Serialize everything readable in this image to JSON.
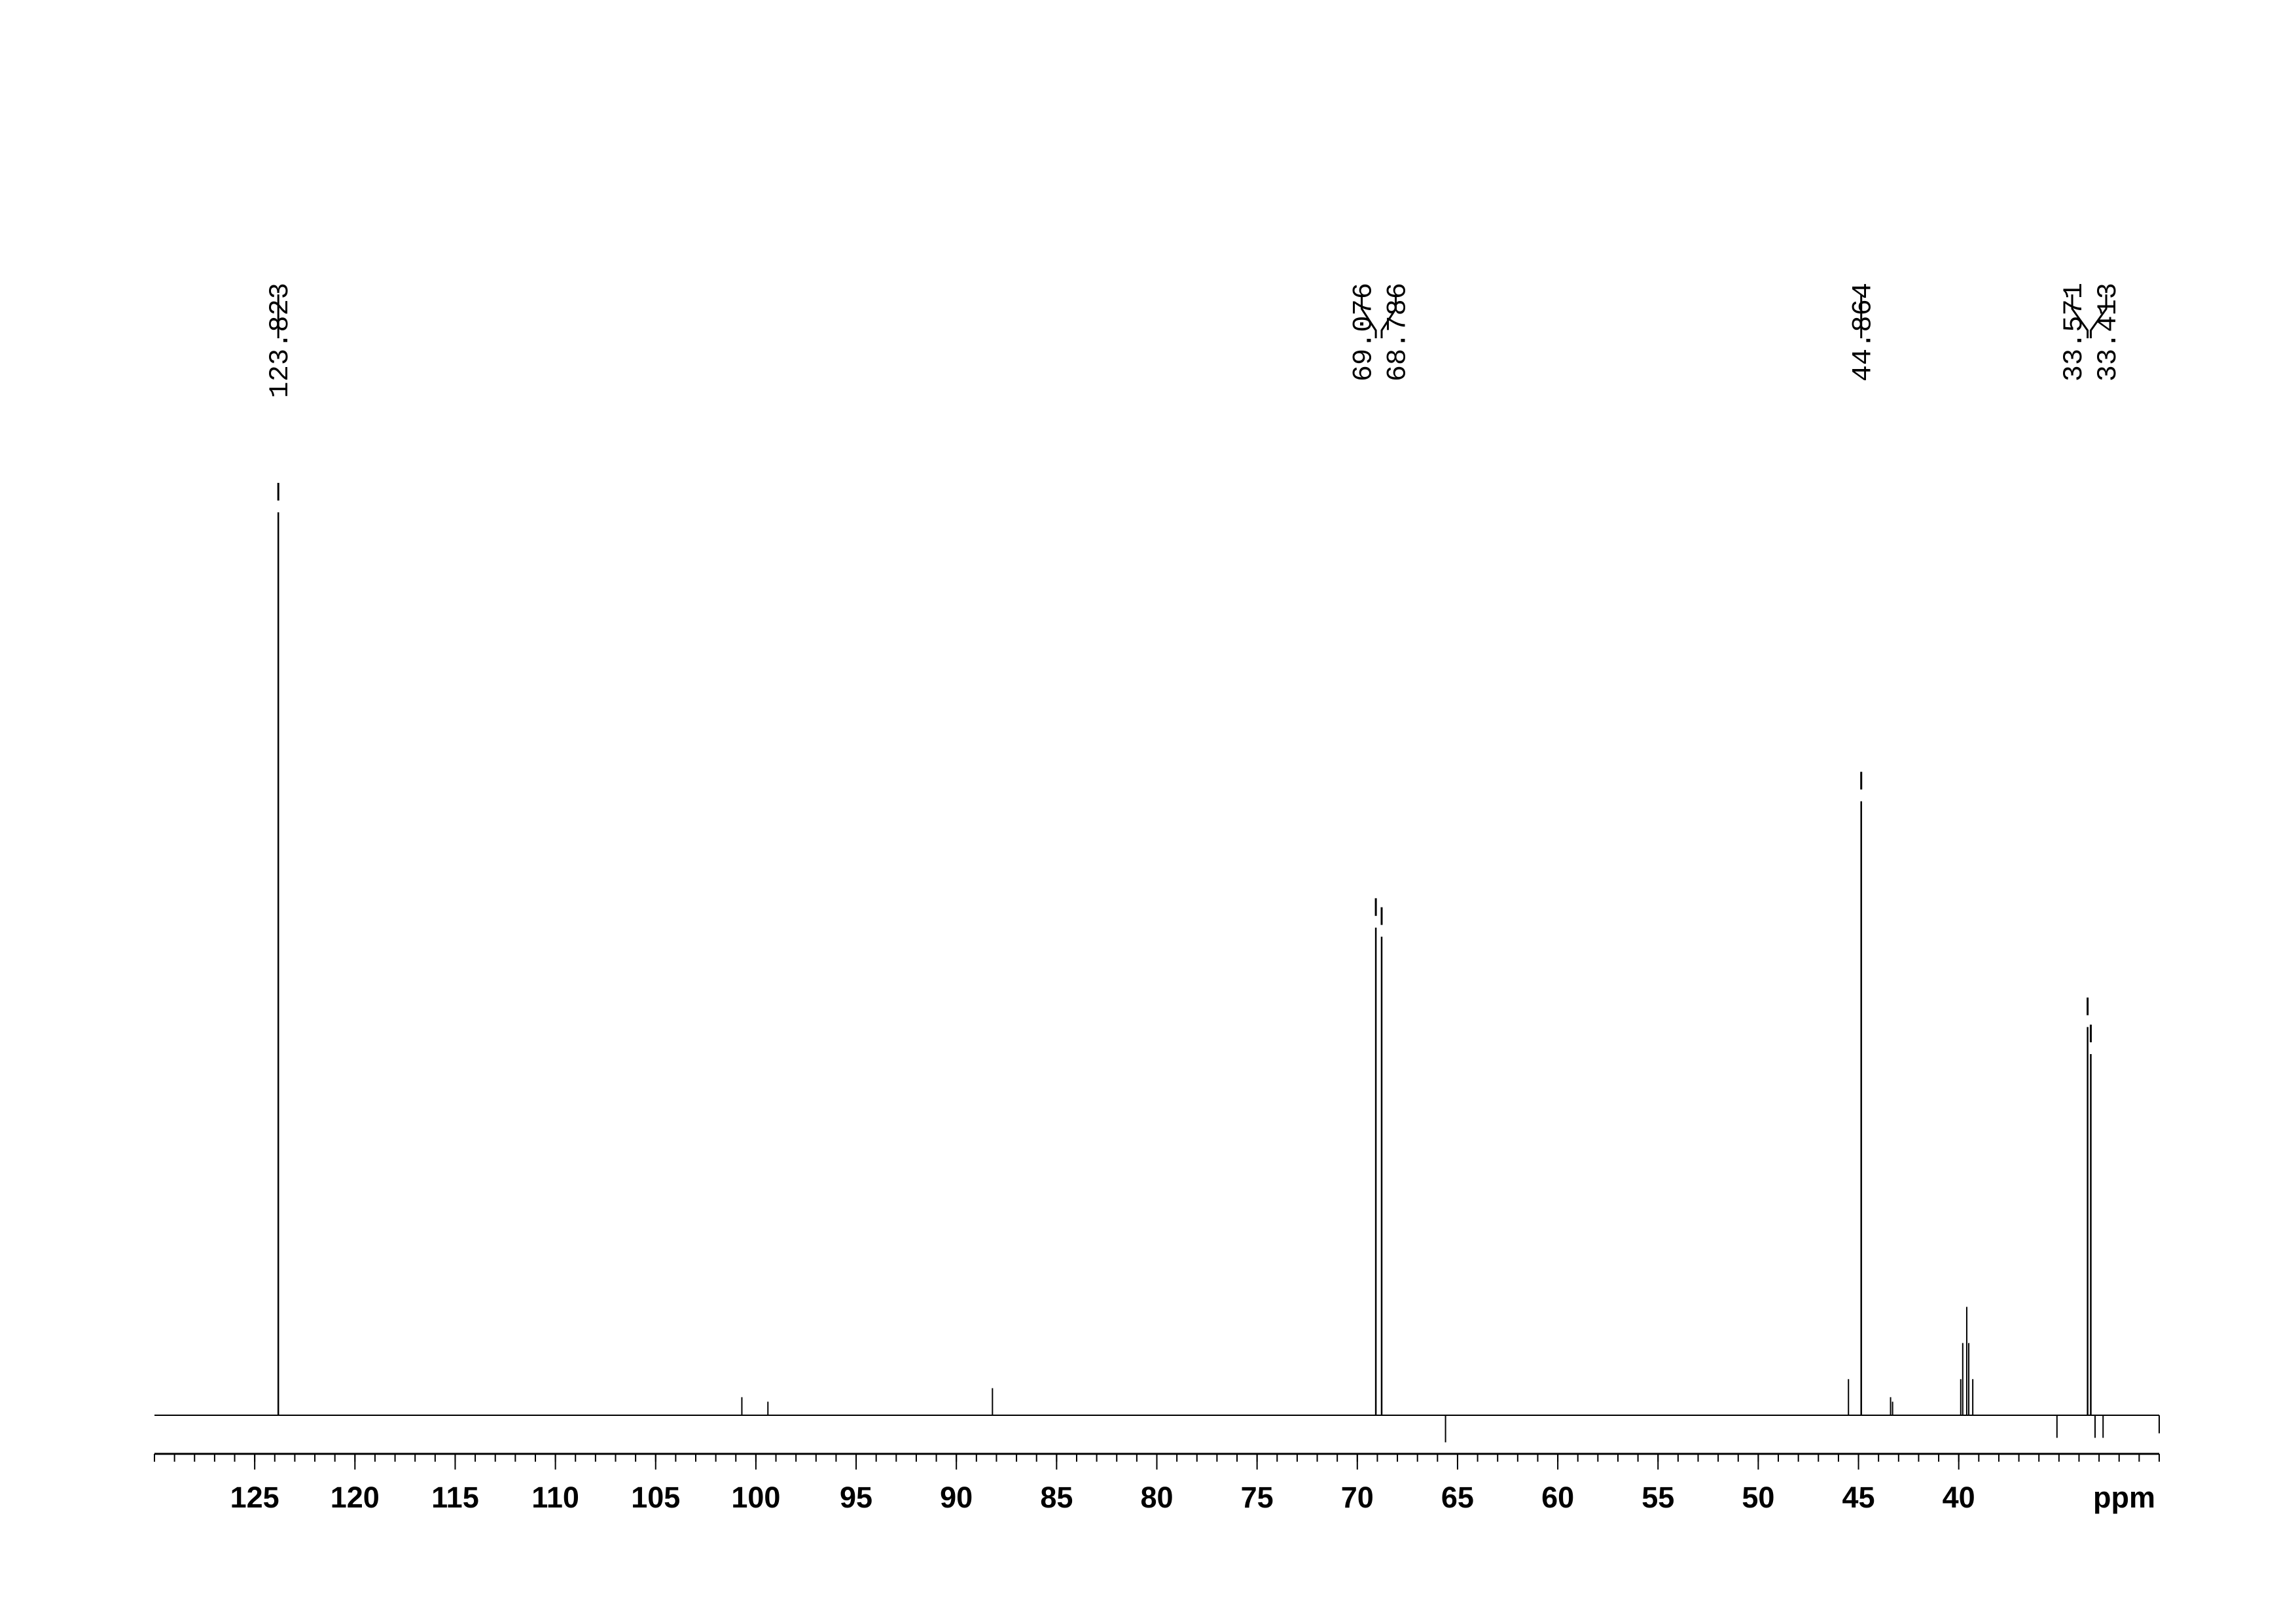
{
  "chart_data": {
    "type": "spectrum",
    "x_label": "ppm",
    "xlim": [
      130,
      30
    ],
    "xticks": [
      125,
      120,
      115,
      110,
      105,
      100,
      95,
      90,
      85,
      80,
      75,
      70,
      65,
      60,
      55,
      50,
      45,
      40
    ],
    "ylim": [
      -5,
      105
    ],
    "color": "#000000",
    "peak_labels": [
      123.823,
      69.076,
      68.786,
      44.864,
      33.571,
      33.413
    ],
    "peak_label_heights": [
      100,
      54,
      53,
      68,
      43,
      40
    ],
    "x": [
      100.7,
      99.4,
      88.2,
      65.6,
      45.5,
      43.4,
      43.3,
      39.9,
      39.8,
      39.6,
      39.5,
      39.3,
      35.1,
      33.2,
      32.8,
      30.0
    ],
    "values": [
      2,
      1.5,
      3,
      -3,
      4,
      2,
      1.5,
      4,
      8,
      12,
      8,
      4,
      -2.5,
      -2.5,
      -2.5,
      -2
    ]
  }
}
